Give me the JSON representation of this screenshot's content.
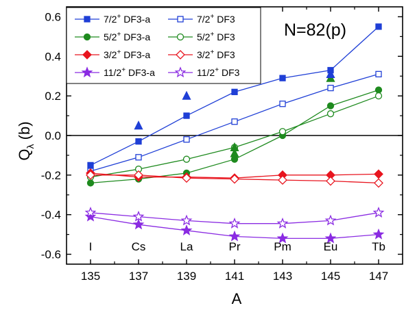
{
  "chart_data": {
    "type": "line",
    "title": "N=82(p)",
    "xlabel": "A",
    "ylabel_main": "Q",
    "ylabel_sub": "λ",
    "ylabel_unit": " (b)",
    "xlim": [
      134,
      148
    ],
    "ylim": [
      -0.65,
      0.65
    ],
    "xticks": [
      135,
      137,
      139,
      141,
      143,
      145,
      147
    ],
    "yticks": [
      -0.6,
      -0.4,
      -0.2,
      0.0,
      0.2,
      0.4,
      0.6
    ],
    "ytick_labels": [
      "-0.6",
      "-0.4",
      "-0.2",
      "0.0",
      "0.2",
      "0.4",
      "0.6"
    ],
    "reference_line_y": 0.0,
    "x": [
      135,
      137,
      139,
      141,
      143,
      145,
      147
    ],
    "elements": [
      "I",
      "Cs",
      "La",
      "Pr",
      "Pm",
      "Eu",
      "Tb"
    ],
    "series": [
      {
        "name": "7/2⁺ DF3-a",
        "state": "7/2",
        "suffix": " DF3-a",
        "color": "#1f3fd6",
        "marker": "square",
        "filled": true,
        "values": [
          -0.15,
          -0.03,
          0.1,
          0.22,
          0.29,
          0.33,
          0.55
        ]
      },
      {
        "name": "7/2⁺ DF3",
        "state": "7/2",
        "suffix": " DF3",
        "color": "#1f3fd6",
        "marker": "square",
        "filled": false,
        "values": [
          -0.18,
          -0.11,
          -0.02,
          0.07,
          0.16,
          0.24,
          0.31
        ]
      },
      {
        "name": "5/2⁺ DF3-a",
        "state": "5/2",
        "suffix": " DF3-a",
        "color": "#1e8a1e",
        "marker": "circle",
        "filled": true,
        "values": [
          -0.24,
          -0.22,
          -0.19,
          -0.12,
          0.0,
          0.15,
          0.23
        ]
      },
      {
        "name": "5/2⁺ DF3",
        "state": "5/2",
        "suffix": " DF3",
        "color": "#1e8a1e",
        "marker": "circle",
        "filled": false,
        "values": [
          -0.21,
          -0.17,
          -0.12,
          -0.06,
          0.02,
          0.11,
          0.2
        ]
      },
      {
        "name": "3/2⁺ DF3-a",
        "state": "3/2",
        "suffix": " DF3-a",
        "color": "#e8141e",
        "marker": "diamond",
        "filled": true,
        "values": [
          -0.19,
          -0.21,
          -0.21,
          -0.215,
          -0.2,
          -0.2,
          -0.195
        ]
      },
      {
        "name": "3/2⁺ DF3",
        "state": "3/2",
        "suffix": " DF3",
        "color": "#e8141e",
        "marker": "diamond",
        "filled": false,
        "values": [
          -0.2,
          -0.2,
          -0.215,
          -0.22,
          -0.225,
          -0.23,
          -0.24
        ]
      },
      {
        "name": "11/2⁺ DF3-a",
        "state": "11/2",
        "suffix": " DF3-a",
        "color": "#8a2be2",
        "marker": "star",
        "filled": true,
        "values": [
          -0.41,
          -0.45,
          -0.48,
          -0.51,
          -0.52,
          -0.52,
          -0.5
        ]
      },
      {
        "name": "11/2⁺ DF3",
        "state": "11/2",
        "suffix": " DF3",
        "color": "#8a2be2",
        "marker": "star",
        "filled": false,
        "values": [
          -0.39,
          -0.41,
          -0.43,
          -0.445,
          -0.445,
          -0.43,
          -0.39
        ]
      }
    ],
    "experimental": [
      {
        "x": 137,
        "y": 0.05,
        "color": "#1f3fd6",
        "marker": "triangle"
      },
      {
        "x": 139,
        "y": 0.2,
        "color": "#1f3fd6",
        "marker": "triangle"
      },
      {
        "x": 141,
        "y": -0.06,
        "color": "#1e8a1e",
        "marker": "triangle"
      },
      {
        "x": 141,
        "y": -0.09,
        "color": "#1e8a1e",
        "marker": "triangle"
      },
      {
        "x": 145,
        "y": 0.29,
        "color": "#1e8a1e",
        "marker": "triangle"
      },
      {
        "x": 145,
        "y": 0.31,
        "color": "#1f3fd6",
        "marker": "triangle"
      }
    ],
    "legend": {
      "placement": "top-left",
      "columns": 2,
      "superscript": "+"
    }
  }
}
